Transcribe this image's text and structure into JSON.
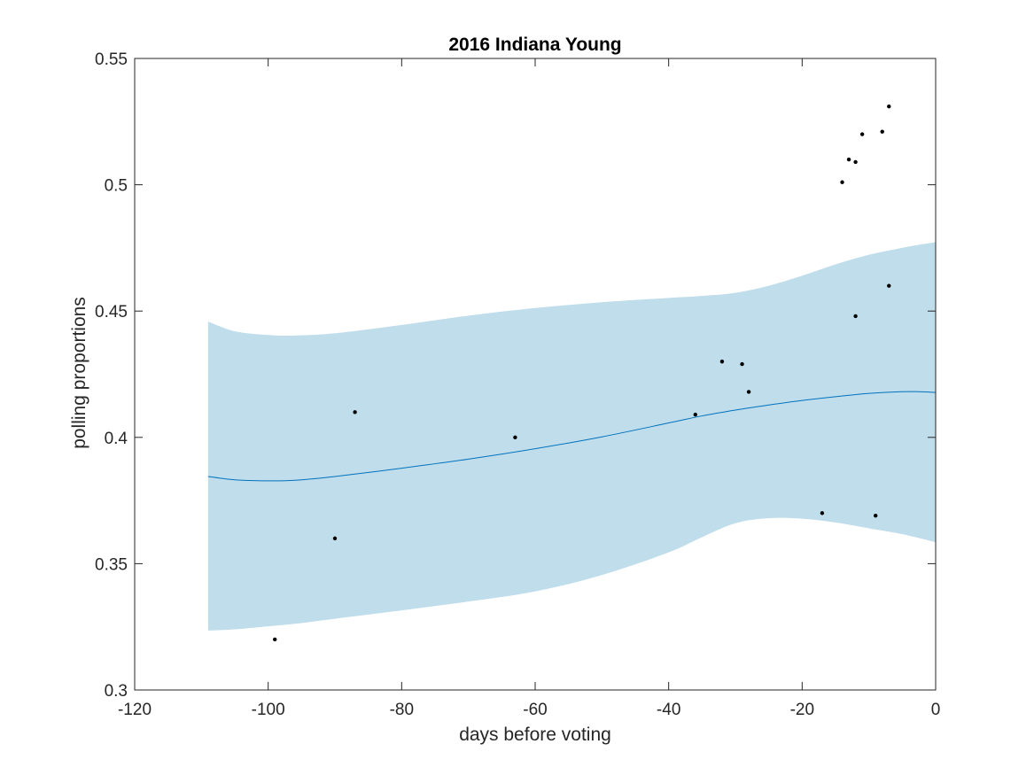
{
  "chart_data": {
    "type": "scatter",
    "title": "2016 Indiana Young",
    "xlabel": "days before voting",
    "ylabel": "polling proportions",
    "xlim": [
      -120,
      0
    ],
    "ylim": [
      0.3,
      0.55
    ],
    "xticks": [
      -120,
      -100,
      -80,
      -60,
      -40,
      -20,
      0
    ],
    "yticks": [
      0.3,
      0.35,
      0.4,
      0.45,
      0.5,
      0.55
    ],
    "xtick_labels": [
      "-120",
      "-100",
      "-80",
      "-60",
      "-40",
      "-20",
      "0"
    ],
    "ytick_labels": [
      "0.3",
      "0.35",
      "0.4",
      "0.45",
      "0.5",
      "0.55"
    ],
    "grid": false,
    "colors": {
      "fit_line": "#0072BD",
      "band": "#BFDDEB",
      "points": "#000000",
      "axes": "#262626"
    },
    "points": [
      {
        "x": -99,
        "y": 0.32
      },
      {
        "x": -90,
        "y": 0.36
      },
      {
        "x": -87,
        "y": 0.41
      },
      {
        "x": -63,
        "y": 0.4
      },
      {
        "x": -36,
        "y": 0.409
      },
      {
        "x": -32,
        "y": 0.43
      },
      {
        "x": -29,
        "y": 0.429
      },
      {
        "x": -28,
        "y": 0.418
      },
      {
        "x": -17,
        "y": 0.37
      },
      {
        "x": -14,
        "y": 0.501
      },
      {
        "x": -13,
        "y": 0.51
      },
      {
        "x": -12,
        "y": 0.509
      },
      {
        "x": -12,
        "y": 0.448
      },
      {
        "x": -11,
        "y": 0.52
      },
      {
        "x": -9,
        "y": 0.369
      },
      {
        "x": -8,
        "y": 0.521
      },
      {
        "x": -7,
        "y": 0.531
      },
      {
        "x": -7,
        "y": 0.46
      }
    ],
    "fit": {
      "x": [
        -109,
        -105,
        -100,
        -96,
        -90,
        -80,
        -70,
        -60,
        -50,
        -40,
        -35,
        -30,
        -25,
        -20,
        -15,
        -10,
        -6,
        -3,
        0
      ],
      "y": [
        0.3845,
        0.3832,
        0.3828,
        0.383,
        0.3845,
        0.3878,
        0.3914,
        0.3955,
        0.4002,
        0.4057,
        0.4085,
        0.4108,
        0.4128,
        0.4146,
        0.4161,
        0.4174,
        0.418,
        0.4181,
        0.4178
      ],
      "lower": [
        0.3235,
        0.324,
        0.3252,
        0.3262,
        0.3282,
        0.3315,
        0.335,
        0.339,
        0.3455,
        0.3545,
        0.3605,
        0.366,
        0.368,
        0.3678,
        0.3663,
        0.364,
        0.3622,
        0.3605,
        0.3585
      ],
      "upper": [
        0.4458,
        0.442,
        0.4405,
        0.4403,
        0.4412,
        0.4445,
        0.4482,
        0.4512,
        0.4535,
        0.4552,
        0.456,
        0.4572,
        0.46,
        0.464,
        0.4685,
        0.4723,
        0.4745,
        0.476,
        0.4773
      ]
    }
  }
}
